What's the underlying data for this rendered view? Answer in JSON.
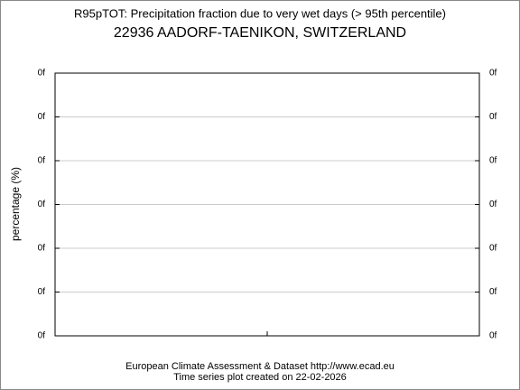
{
  "chart_data": {
    "type": "line",
    "title": "R95pTOT: Precipitation fraction due to very wet days (> 95th percentile)",
    "subtitle": "22936 AADORF-TAENIKON, SWITZERLAND",
    "ylabel": "percentage (%)",
    "ylim": [
      0,
      6
    ],
    "yticks": [
      {
        "value": 0,
        "label": "0f"
      },
      {
        "value": 1,
        "label": "0f"
      },
      {
        "value": 2,
        "label": "0f"
      },
      {
        "value": 3,
        "label": "0f"
      },
      {
        "value": 4,
        "label": "0f"
      },
      {
        "value": 5,
        "label": "0f"
      },
      {
        "value": 6,
        "label": "0f"
      }
    ],
    "y2lim": [
      0,
      6
    ],
    "y2ticks": [
      {
        "value": 0,
        "label": "0f"
      },
      {
        "value": 1,
        "label": "0f"
      },
      {
        "value": 2,
        "label": "0f"
      },
      {
        "value": 3,
        "label": "0f"
      },
      {
        "value": 4,
        "label": "0f"
      },
      {
        "value": 5,
        "label": "0f"
      },
      {
        "value": 6,
        "label": "0f"
      }
    ],
    "grid": true,
    "footer": [
      "European Climate Assessment & Dataset  http://www.ecad.eu",
      "Time series plot created on 22-02-2026"
    ]
  }
}
